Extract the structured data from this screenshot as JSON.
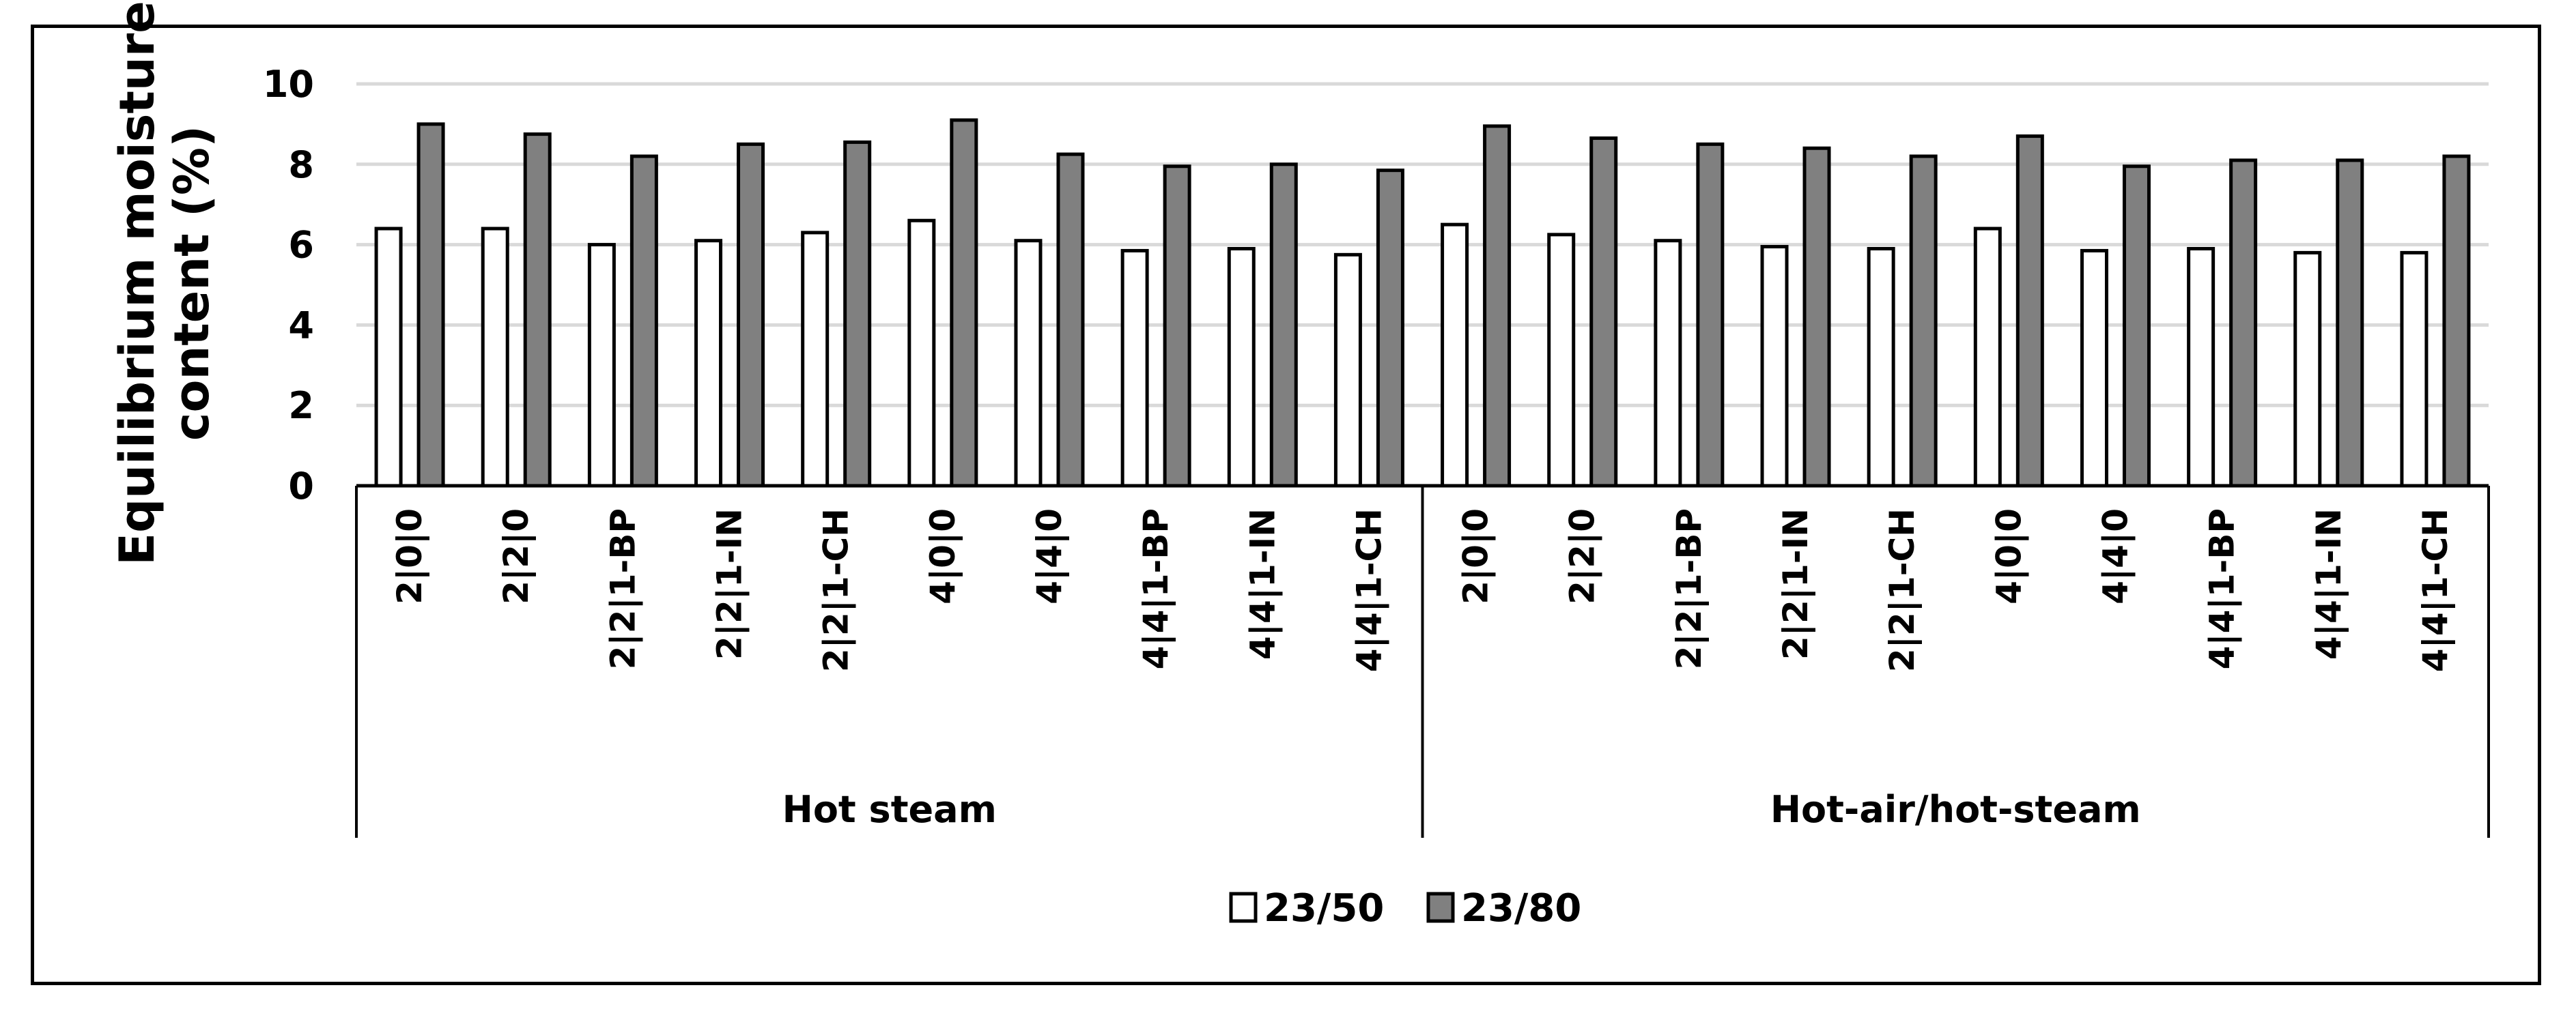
{
  "chart_data": {
    "type": "bar",
    "ylabel": "Equilibrium moisture content (%)",
    "ylim": [
      0,
      10
    ],
    "yticks": [
      "0",
      "2",
      "4",
      "6",
      "8",
      "10"
    ],
    "grid": true,
    "legend_position": "bottom-center",
    "groups": [
      {
        "name": "Hot steam",
        "categories": [
          "2|0|0",
          "2|2|0",
          "2|2|1-BP",
          "2|2|1-IN",
          "2|2|1-CH",
          "4|0|0",
          "4|4|0",
          "4|4|1-BP",
          "4|4|1-IN",
          "4|4|1-CH"
        ]
      },
      {
        "name": "Hot-air/hot-steam",
        "categories": [
          "2|0|0",
          "2|2|0",
          "2|2|1-BP",
          "2|2|1-IN",
          "2|2|1-CH",
          "4|0|0",
          "4|4|0",
          "4|4|1-BP",
          "4|4|1-IN",
          "4|4|1-CH"
        ]
      }
    ],
    "series": [
      {
        "name": "23/50",
        "color": "#ffffff",
        "values": [
          6.4,
          6.4,
          6.0,
          6.1,
          6.3,
          6.6,
          6.1,
          5.85,
          5.9,
          5.75,
          6.5,
          6.25,
          6.1,
          5.95,
          5.9,
          6.4,
          5.85,
          5.9,
          5.8,
          5.8
        ]
      },
      {
        "name": "23/80",
        "color": "#808080",
        "values": [
          9.0,
          8.75,
          8.2,
          8.5,
          8.55,
          9.1,
          8.25,
          7.95,
          8.0,
          7.85,
          8.95,
          8.65,
          8.5,
          8.4,
          8.2,
          8.7,
          7.95,
          8.1,
          8.1,
          8.2
        ]
      }
    ]
  }
}
